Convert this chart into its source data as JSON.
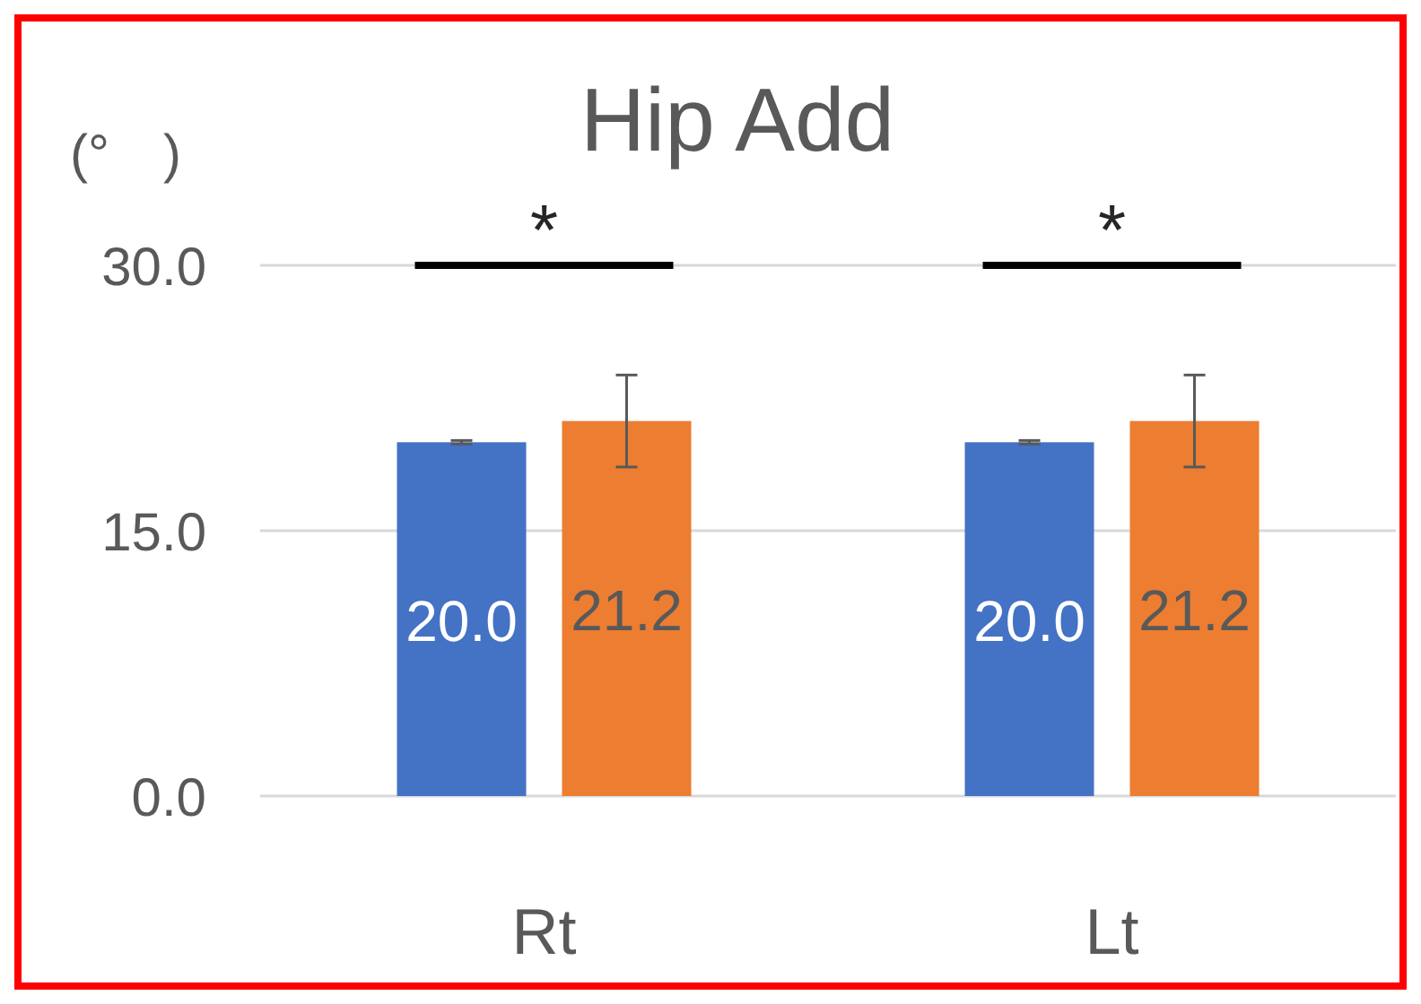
{
  "chart_data": {
    "type": "bar",
    "title": "Hip Add",
    "ylabel": "(°　)",
    "categories": [
      "Rt",
      "Lt"
    ],
    "series": [
      {
        "color": "#4472c4",
        "values": [
          20.0,
          20.0
        ],
        "errors": [
          0.1,
          0.1
        ],
        "value_labels": [
          "20.0",
          "20.0"
        ]
      },
      {
        "color": "#ed7d31",
        "values": [
          21.2,
          21.2
        ],
        "errors": [
          2.6,
          2.6
        ],
        "value_labels": [
          "21.2",
          "21.2"
        ]
      }
    ],
    "ylim": [
      0,
      30
    ],
    "yticks": [
      {
        "value": 0,
        "label": "0.0"
      },
      {
        "value": 15,
        "label": "15.0"
      },
      {
        "value": 30,
        "label": "30.0"
      }
    ],
    "grid": "y",
    "annotations": [
      "*",
      "*"
    ]
  }
}
